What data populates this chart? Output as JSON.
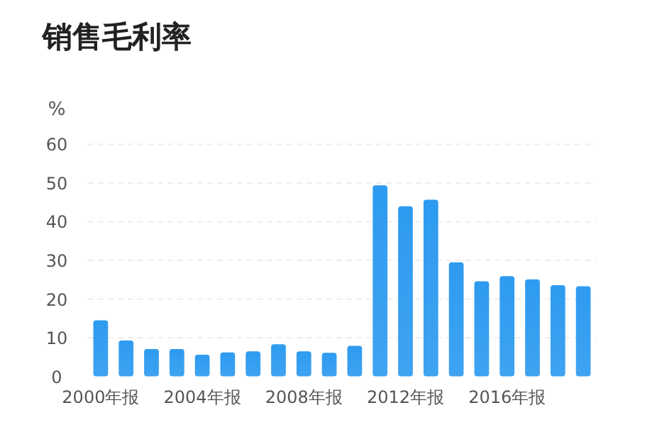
{
  "chart_data": {
    "type": "bar",
    "title": "销售毛利率",
    "ylabel": "%",
    "categories": [
      "2000年报",
      null,
      null,
      null,
      "2004年报",
      null,
      null,
      null,
      "2008年报",
      null,
      null,
      null,
      "2012年报",
      null,
      null,
      null,
      "2016年报",
      null,
      null,
      null
    ],
    "values": [
      14.5,
      9.3,
      7.1,
      7.1,
      5.6,
      6.2,
      6.5,
      8.3,
      6.5,
      6.1,
      7.9,
      49.4,
      44.0,
      45.7,
      29.5,
      24.6,
      25.9,
      25.1,
      23.6,
      23.3
    ],
    "color": "#2e9bf0",
    "ylim": [
      0,
      60
    ],
    "yticks": [
      0,
      10,
      20,
      30,
      40,
      50,
      60
    ],
    "grid": "y"
  }
}
